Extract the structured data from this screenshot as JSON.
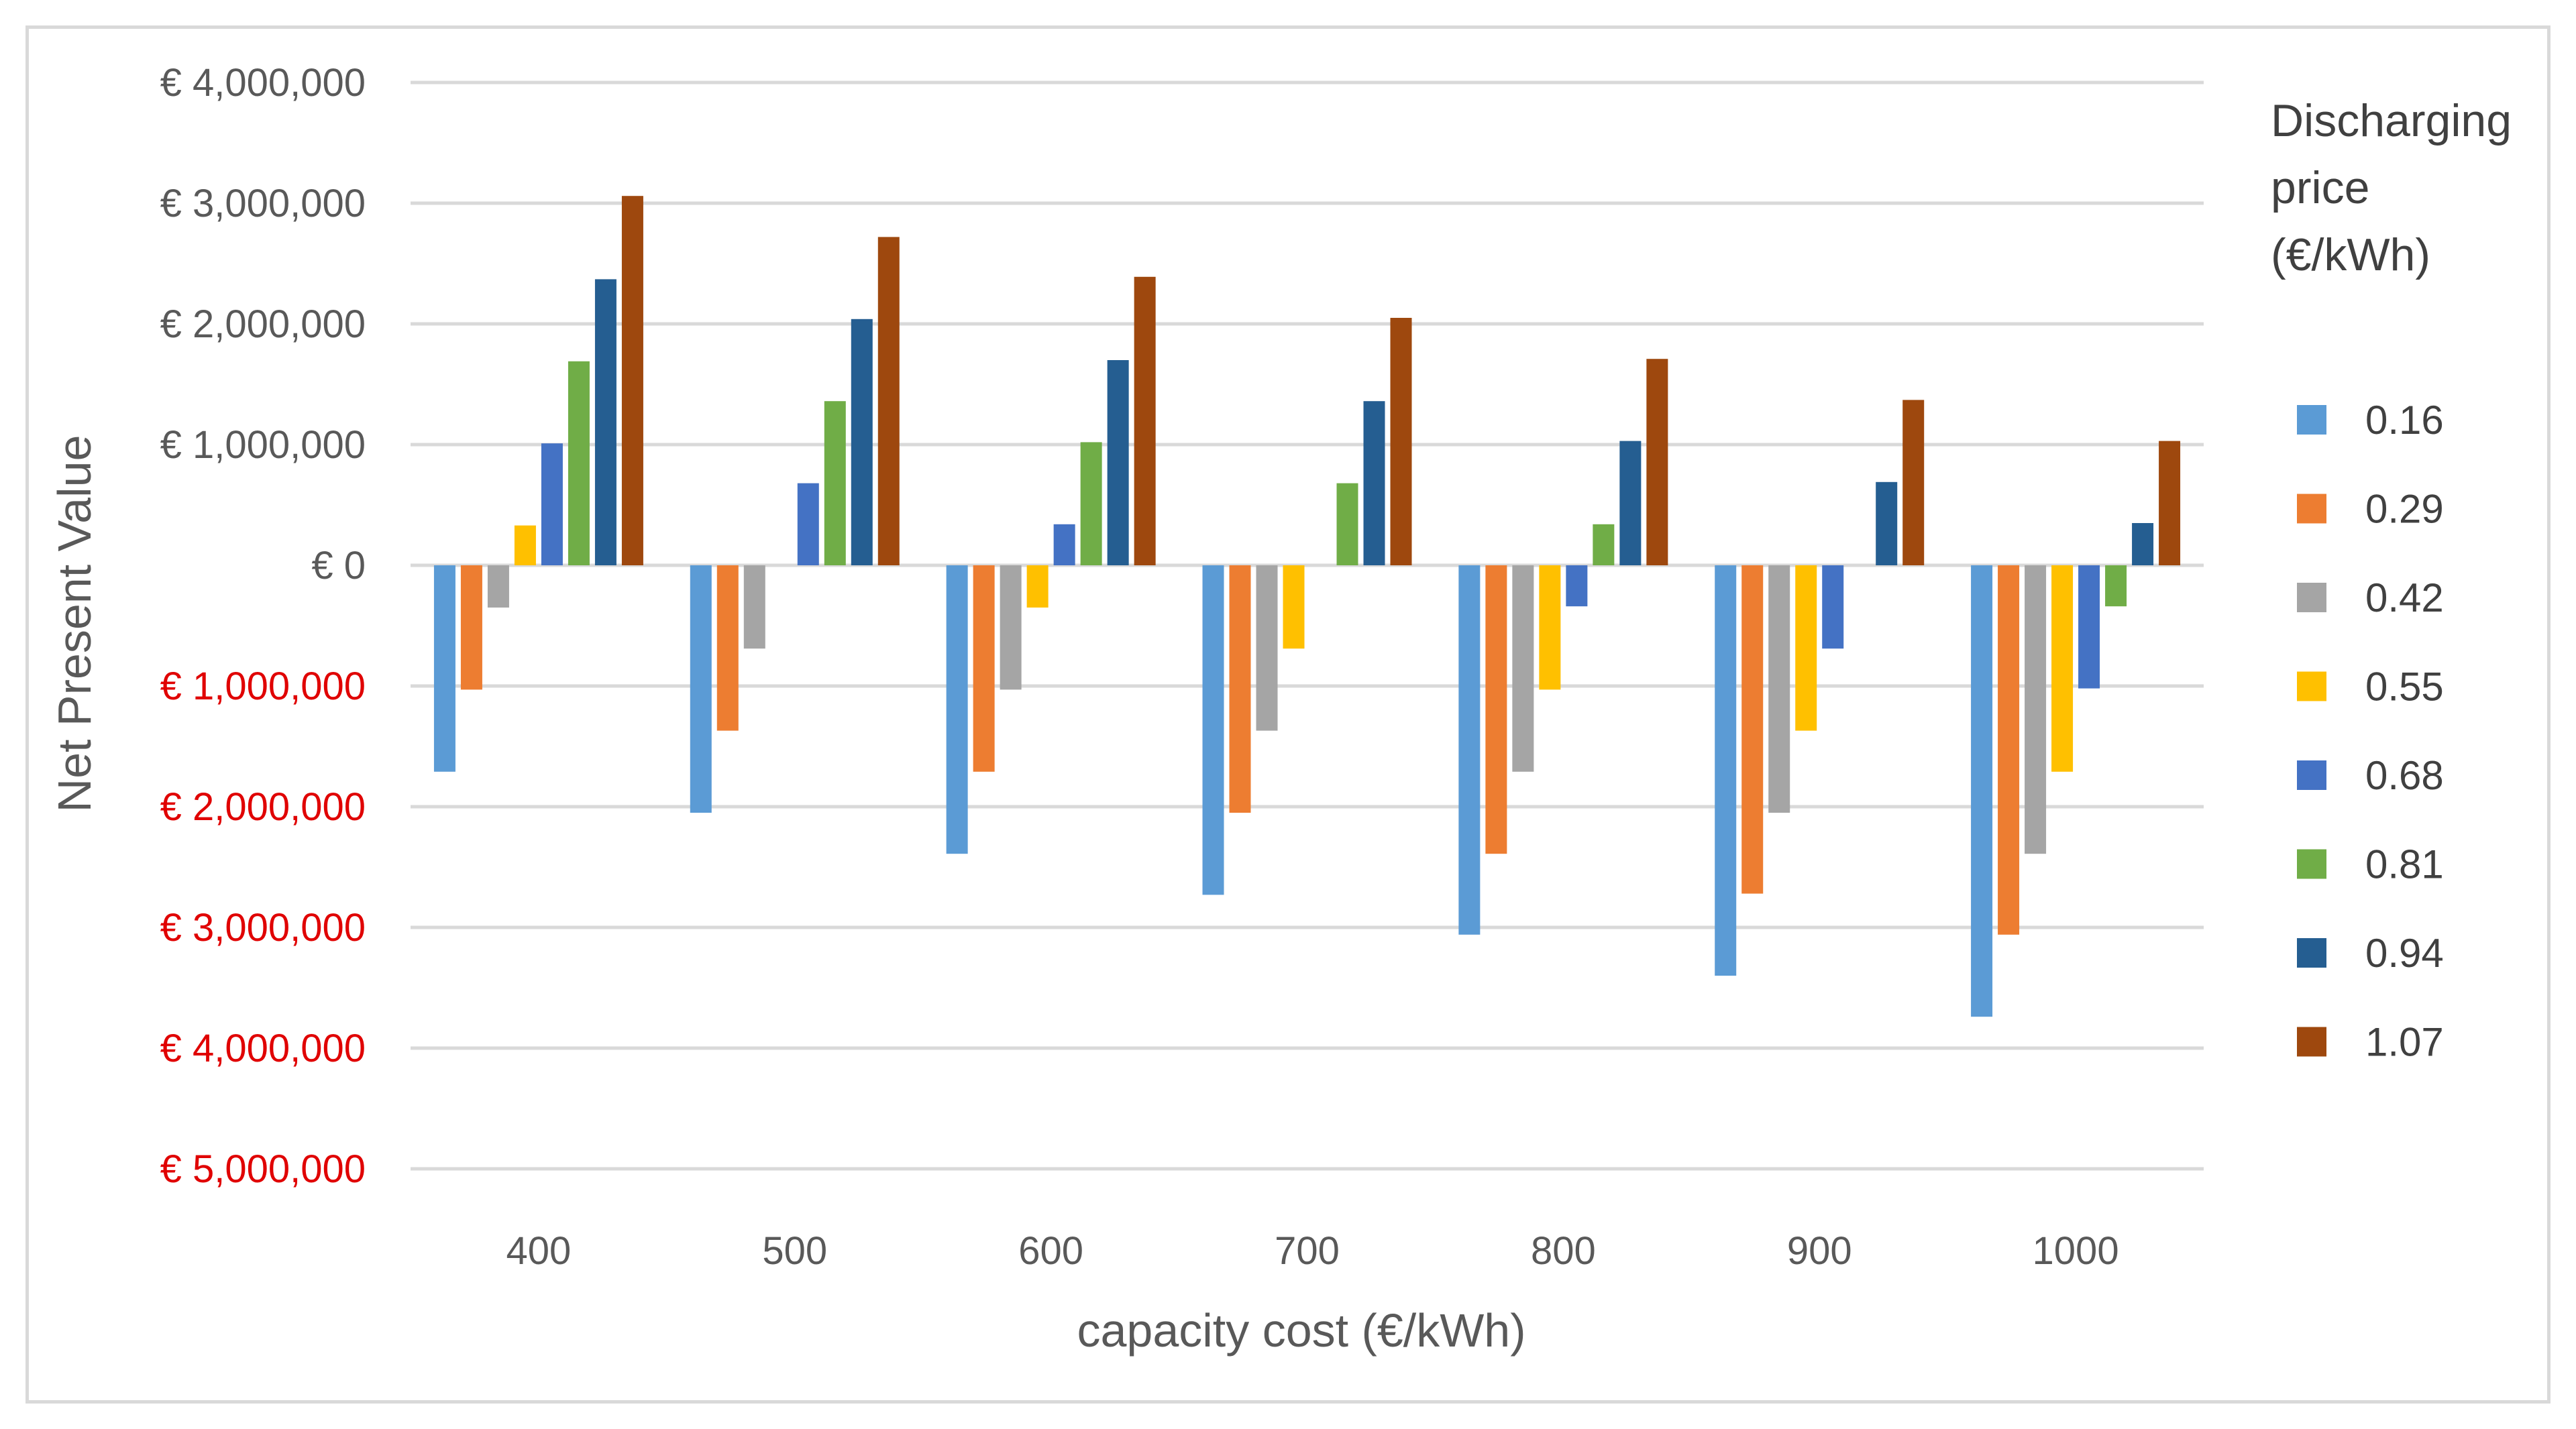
{
  "chart_data": {
    "type": "bar",
    "title": "",
    "xlabel": "capacity cost (€/kWh)",
    "ylabel": "Net Present Value",
    "categories": [
      "400",
      "500",
      "600",
      "700",
      "800",
      "900",
      "1000"
    ],
    "ylim": [
      -5000000,
      4000000
    ],
    "y_ticks": [
      {
        "value": 4000000,
        "label": "€ 4,000,000"
      },
      {
        "value": 3000000,
        "label": "€ 3,000,000"
      },
      {
        "value": 2000000,
        "label": "€ 2,000,000"
      },
      {
        "value": 1000000,
        "label": "€ 1,000,000"
      },
      {
        "value": 0,
        "label": "€ 0"
      },
      {
        "value": -1000000,
        "label": "€ 1,000,000"
      },
      {
        "value": -2000000,
        "label": "€ 2,000,000"
      },
      {
        "value": -3000000,
        "label": "€ 3,000,000"
      },
      {
        "value": -4000000,
        "label": "€ 4,000,000"
      },
      {
        "value": -5000000,
        "label": "€ 5,000,000"
      }
    ],
    "negative_label_color": "#e00000",
    "grid": true,
    "legend": {
      "title_lines": [
        "Discharging",
        "price",
        "(€/kWh)"
      ],
      "placement": "right"
    },
    "series": [
      {
        "name": "0.16",
        "color": "#5b9bd5",
        "values": [
          -1710000,
          -2050000,
          -2390000,
          -2730000,
          -3060000,
          -3400000,
          -3740000
        ]
      },
      {
        "name": "0.29",
        "color": "#ed7d31",
        "values": [
          -1030000,
          -1370000,
          -1710000,
          -2050000,
          -2390000,
          -2720000,
          -3060000
        ]
      },
      {
        "name": "0.42",
        "color": "#a5a5a5",
        "values": [
          -350000,
          -690000,
          -1030000,
          -1370000,
          -1710000,
          -2050000,
          -2390000
        ]
      },
      {
        "name": "0.55",
        "color": "#ffc000",
        "values": [
          330000,
          0,
          -350000,
          -690000,
          -1030000,
          -1370000,
          -1710000
        ]
      },
      {
        "name": "0.68",
        "color": "#4472c4",
        "values": [
          1010000,
          680000,
          340000,
          0,
          -340000,
          -690000,
          -1020000
        ]
      },
      {
        "name": "0.81",
        "color": "#70ad47",
        "values": [
          1690000,
          1360000,
          1020000,
          680000,
          340000,
          0,
          -340000
        ]
      },
      {
        "name": "0.94",
        "color": "#255e91",
        "values": [
          2370000,
          2040000,
          1700000,
          1360000,
          1030000,
          690000,
          350000
        ]
      },
      {
        "name": "1.07",
        "color": "#9e480e",
        "values": [
          3060000,
          2720000,
          2390000,
          2050000,
          1710000,
          1370000,
          1030000
        ]
      }
    ]
  }
}
